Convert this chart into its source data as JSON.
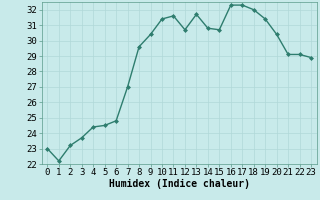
{
  "x": [
    0,
    1,
    2,
    3,
    4,
    5,
    6,
    7,
    8,
    9,
    10,
    11,
    12,
    13,
    14,
    15,
    16,
    17,
    18,
    19,
    20,
    21,
    22,
    23
  ],
  "y": [
    23.0,
    22.2,
    23.2,
    23.7,
    24.4,
    24.5,
    24.8,
    27.0,
    29.6,
    30.4,
    31.4,
    31.6,
    30.7,
    31.7,
    30.8,
    30.7,
    32.3,
    32.3,
    32.0,
    31.4,
    30.4,
    29.1,
    29.1,
    28.9
  ],
  "line_color": "#2e7d6e",
  "marker": "D",
  "marker_size": 2.0,
  "bg_color": "#c8eaea",
  "grid_color": "#b0d8d8",
  "xlabel": "Humidex (Indice chaleur)",
  "ylim": [
    22,
    32.5
  ],
  "xlim": [
    -0.5,
    23.5
  ],
  "yticks": [
    22,
    23,
    24,
    25,
    26,
    27,
    28,
    29,
    30,
    31,
    32
  ],
  "xticks": [
    0,
    1,
    2,
    3,
    4,
    5,
    6,
    7,
    8,
    9,
    10,
    11,
    12,
    13,
    14,
    15,
    16,
    17,
    18,
    19,
    20,
    21,
    22,
    23
  ],
  "xlabel_fontsize": 7,
  "tick_fontsize": 6.5,
  "spine_color": "#5a9a8a",
  "line_width": 1.0
}
